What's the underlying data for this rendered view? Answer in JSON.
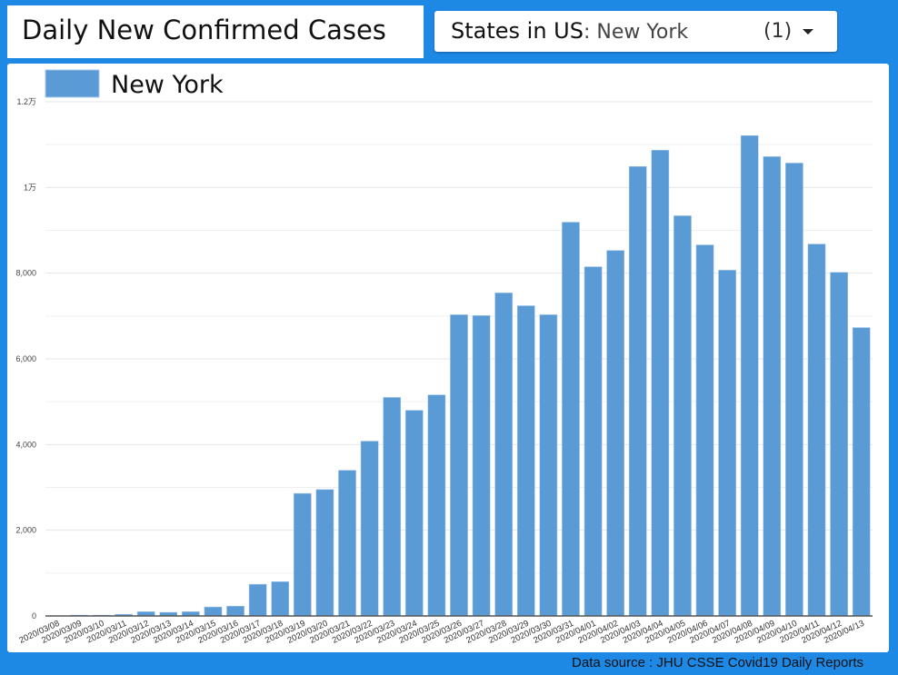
{
  "header": {
    "title": "Daily New Confirmed Cases",
    "filter_label": "States in US",
    "filter_value": ": New York",
    "filter_count": "(1)"
  },
  "footer": {
    "source": "Data source : JHU CSSE Covid19 Daily Reports"
  },
  "colors": {
    "bar": "#5b9bd5",
    "background": "#1e88e5"
  },
  "chart_data": {
    "type": "bar",
    "title": "Daily New Confirmed Cases",
    "xlabel": "",
    "ylabel": "",
    "ylim": [
      0,
      12000
    ],
    "grid": true,
    "legend": {
      "position": "top-left",
      "entries": [
        "New York"
      ]
    },
    "yticks": [
      {
        "value": 0,
        "label": "0"
      },
      {
        "value": 2000,
        "label": "2,000"
      },
      {
        "value": 4000,
        "label": "4,000"
      },
      {
        "value": 6000,
        "label": "6,000"
      },
      {
        "value": 8000,
        "label": "8,000"
      },
      {
        "value": 10000,
        "label": "1万"
      },
      {
        "value": 12000,
        "label": "1.2万"
      }
    ],
    "categories": [
      "2020/03/08",
      "2020/03/09",
      "2020/03/10",
      "2020/03/11",
      "2020/03/12",
      "2020/03/13",
      "2020/03/14",
      "2020/03/15",
      "2020/03/16",
      "2020/03/17",
      "2020/03/18",
      "2020/03/19",
      "2020/03/20",
      "2020/03/21",
      "2020/03/22",
      "2020/03/23",
      "2020/03/24",
      "2020/03/25",
      "2020/03/26",
      "2020/03/27",
      "2020/03/28",
      "2020/03/29",
      "2020/03/30",
      "2020/03/31",
      "2020/04/01",
      "2020/04/02",
      "2020/04/03",
      "2020/04/04",
      "2020/04/05",
      "2020/04/06",
      "2020/04/07",
      "2020/04/08",
      "2020/04/09",
      "2020/04/10",
      "2020/04/11",
      "2020/04/12",
      "2020/04/13"
    ],
    "series": [
      {
        "name": "New York",
        "values": [
          0,
          20,
          20,
          40,
          100,
          85,
          100,
          210,
          230,
          740,
          800,
          2860,
          2950,
          3400,
          4080,
          5100,
          4800,
          5160,
          7030,
          7010,
          7540,
          7240,
          7030,
          9190,
          8150,
          8530,
          10490,
          10870,
          9340,
          8660,
          8070,
          11210,
          10720,
          10570,
          8680,
          8020,
          6730
        ]
      }
    ]
  }
}
